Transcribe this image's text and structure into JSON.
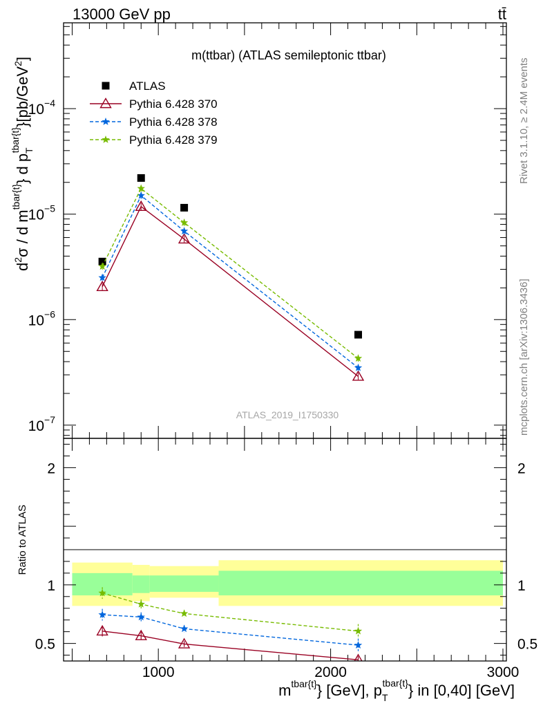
{
  "header": {
    "left": "13000 GeV pp",
    "right": "tt̄"
  },
  "side": {
    "rivet": "Rivet 3.1.10, ≥ 2.4M events",
    "mcplots": "mcplots.cern.ch [arXiv:1306.3436]"
  },
  "colors": {
    "atlas": "#000000",
    "p370": "#990022",
    "p378": "#0066dd",
    "p379": "#77bb00",
    "band_inner": "#99ff99",
    "band_outer": "#ffff99"
  },
  "chart_data": [
    {
      "type": "scatter",
      "panel": "main",
      "title": "m(ttbar) (ATLAS semileptonic ttbar)",
      "watermark": "ATLAS_2019_I1750330",
      "ylabel": "d²σ / d m^{tbar{t}} d p_T^{tbar{t}} [pb/GeV²]",
      "yscale": "log",
      "xlim": [
        450,
        3020
      ],
      "ylim": [
        7.5e-08,
        0.00065
      ],
      "y_ticks": [
        {
          "value": 1e-07,
          "label": "10",
          "exp": "−7"
        },
        {
          "value": 1e-06,
          "label": "10",
          "exp": "−6"
        },
        {
          "value": 1e-05,
          "label": "10",
          "exp": "−5"
        },
        {
          "value": 0.0001,
          "label": "10",
          "exp": "−4"
        }
      ],
      "legend_position": "top-left",
      "series": [
        {
          "name": "ATLAS",
          "key": "atlas",
          "marker": "square",
          "x": [
            675,
            900,
            1150,
            2160
          ],
          "y": [
            3.55e-06,
            2.2e-05,
            1.15e-05,
            7.2e-07
          ]
        },
        {
          "name": "Pythia 6.428 370",
          "key": "p370",
          "marker": "triangle-open",
          "line": "solid",
          "x": [
            675,
            900,
            1150,
            2160
          ],
          "y": [
            2.05e-06,
            1.18e-05,
            5.8e-06,
            2.9e-07
          ]
        },
        {
          "name": "Pythia 6.428 378",
          "key": "p378",
          "marker": "star",
          "line": "dashed",
          "x": [
            675,
            900,
            1150,
            2160
          ],
          "y": [
            2.5e-06,
            1.5e-05,
            6.9e-06,
            3.5e-07
          ]
        },
        {
          "name": "Pythia 6.428 379",
          "key": "p379",
          "marker": "star",
          "line": "dashed",
          "x": [
            675,
            900,
            1150,
            2160
          ],
          "y": [
            3.2e-06,
            1.75e-05,
            8.3e-06,
            4.3e-07
          ]
        }
      ]
    },
    {
      "type": "line",
      "panel": "ratio",
      "ylabel": "Ratio to ATLAS",
      "xlabel": "m^{tbar{t}} [GeV], p_T^{tbar{t}} in [0,40] [GeV]",
      "xlim": [
        450,
        3020
      ],
      "ylim": [
        0.35,
        2.25
      ],
      "x_ticks": [
        1000,
        2000,
        3000
      ],
      "y_ticks": [
        0.5,
        1,
        2
      ],
      "bands": [
        {
          "xlo": 500,
          "xhi": 850,
          "inner": [
            0.91,
            1.1
          ],
          "outer": [
            0.82,
            1.19
          ]
        },
        {
          "xlo": 850,
          "xhi": 950,
          "inner": [
            0.93,
            1.08
          ],
          "outer": [
            0.86,
            1.17
          ]
        },
        {
          "xlo": 950,
          "xhi": 1350,
          "inner": [
            0.94,
            1.08
          ],
          "outer": [
            0.89,
            1.16
          ]
        },
        {
          "xlo": 1350,
          "xhi": 3000,
          "inner": [
            0.91,
            1.12
          ],
          "outer": [
            0.82,
            1.21
          ]
        }
      ],
      "series": [
        {
          "name": "Pythia 6.428 370",
          "key": "p370",
          "marker": "triangle-open",
          "line": "solid",
          "x": [
            675,
            900,
            1150,
            2160
          ],
          "y": [
            0.605,
            0.565,
            0.495,
            0.36
          ],
          "err": [
            0.045,
            0.035,
            0.025,
            0.03
          ]
        },
        {
          "name": "Pythia 6.428 378",
          "key": "p378",
          "marker": "star",
          "line": "dashed",
          "x": [
            675,
            900,
            1150,
            2160
          ],
          "y": [
            0.745,
            0.725,
            0.625,
            0.485
          ],
          "err": [
            0.05,
            0.04,
            0.03,
            0.055
          ]
        },
        {
          "name": "Pythia 6.428 379",
          "key": "p379",
          "marker": "star",
          "line": "dashed",
          "x": [
            675,
            900,
            1150,
            2160
          ],
          "y": [
            0.93,
            0.835,
            0.755,
            0.605
          ],
          "err": [
            0.05,
            0.04,
            0.03,
            0.06
          ]
        }
      ]
    }
  ]
}
